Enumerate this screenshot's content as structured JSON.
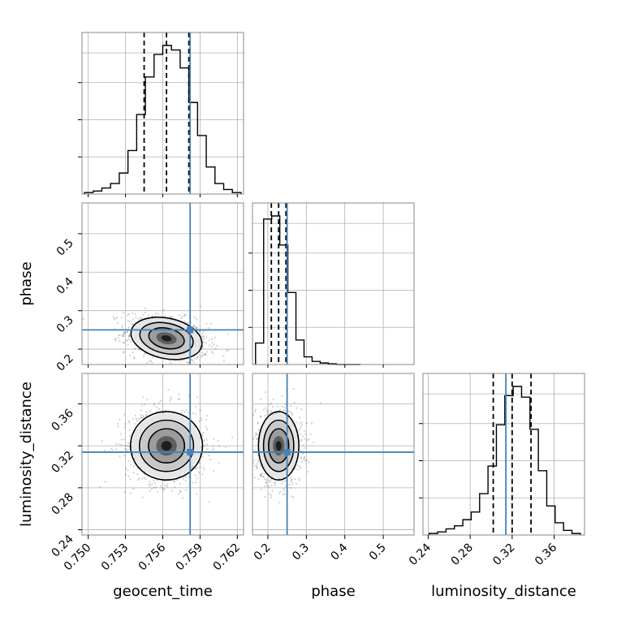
{
  "chart_data": {
    "type": "corner",
    "parameters": [
      "geocent_time",
      "phase",
      "luminosity_distance"
    ],
    "truths": {
      "geocent_time": 0.7582,
      "phase": 0.25,
      "luminosity_distance": 0.314
    },
    "truth_color": "#4682b4",
    "quantiles": {
      "geocent_time": [
        0.7545,
        0.7563,
        0.7581
      ],
      "phase": [
        0.209,
        0.228,
        0.247
      ],
      "luminosity_distance": [
        0.302,
        0.32,
        0.338
      ]
    },
    "axis_ranges": {
      "geocent_time": [
        0.7495,
        0.7625
      ],
      "phase": [
        0.16,
        0.58
      ],
      "luminosity_distance": [
        0.235,
        0.389
      ]
    },
    "ticks": {
      "geocent_time": [
        "0.750",
        "0.753",
        "0.756",
        "0.759",
        "0.762"
      ],
      "phase": [
        "0.2",
        "0.3",
        "0.4",
        "0.5"
      ],
      "luminosity_distance": [
        "0.24",
        "0.28",
        "0.32",
        "0.36"
      ]
    },
    "histograms": {
      "geocent_time": {
        "edges": [
          0.7497,
          0.7504,
          0.7511,
          0.7518,
          0.7525,
          0.7532,
          0.7539,
          0.7546,
          0.7553,
          0.756,
          0.7567,
          0.7574,
          0.7581,
          0.7588,
          0.7595,
          0.7602,
          0.7609,
          0.7616,
          0.7623
        ],
        "counts": [
          0.01,
          0.02,
          0.04,
          0.07,
          0.14,
          0.29,
          0.53,
          0.78,
          0.93,
          0.99,
          0.96,
          0.84,
          0.61,
          0.39,
          0.18,
          0.07,
          0.03,
          0.01
        ]
      },
      "phase": {
        "edges": [
          0.168,
          0.189,
          0.21,
          0.231,
          0.252,
          0.273,
          0.294,
          0.315,
          0.336,
          0.357,
          0.378,
          0.399,
          0.42,
          0.441
        ],
        "counts": [
          0.14,
          0.95,
          0.97,
          0.78,
          0.47,
          0.16,
          0.05,
          0.02,
          0.01,
          0.005,
          0.0,
          0.0,
          0.0
        ]
      },
      "luminosity_distance": {
        "edges": [
          0.241,
          0.249,
          0.257,
          0.265,
          0.273,
          0.281,
          0.289,
          0.297,
          0.305,
          0.313,
          0.321,
          0.329,
          0.337,
          0.345,
          0.353,
          0.361,
          0.369,
          0.377,
          0.385
        ],
        "counts": [
          0.01,
          0.02,
          0.04,
          0.06,
          0.1,
          0.15,
          0.27,
          0.45,
          0.72,
          0.91,
          0.97,
          0.9,
          0.69,
          0.42,
          0.19,
          0.08,
          0.03,
          0.01
        ]
      }
    },
    "joint": [
      {
        "x": "geocent_time",
        "y": "phase",
        "center": [
          0.7563,
          0.228
        ],
        "sigma": [
          0.00138,
          0.025
        ],
        "rho": -0.3
      },
      {
        "x": "geocent_time",
        "y": "luminosity_distance",
        "center": [
          0.7563,
          0.32
        ],
        "sigma": [
          0.00138,
          0.0155
        ],
        "rho": 0.0
      },
      {
        "x": "phase",
        "y": "luminosity_distance",
        "center": [
          0.228,
          0.32
        ],
        "sigma": [
          0.025,
          0.0155
        ],
        "rho": 0.0
      }
    ],
    "contour_levels_sigma": [
      0.5,
      1.0,
      1.5,
      2.0
    ],
    "grid": true
  }
}
